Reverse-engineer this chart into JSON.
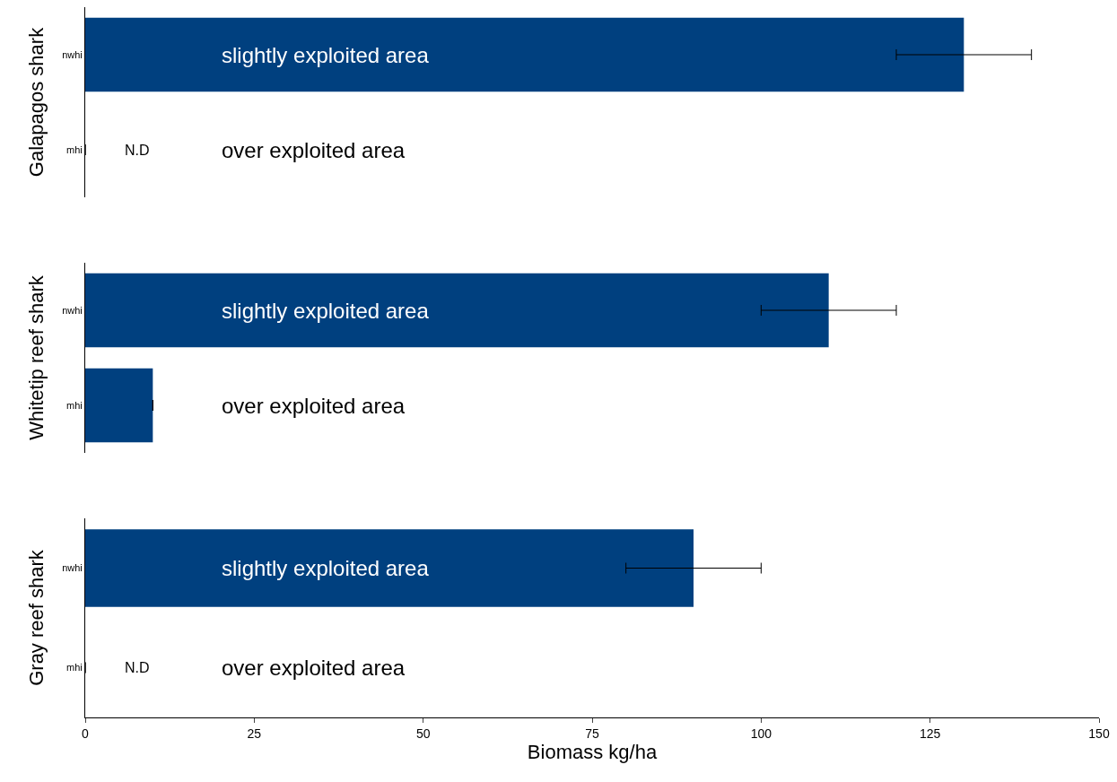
{
  "chart_data": [
    {
      "type": "bar",
      "orientation": "horizontal",
      "ylabel": "Galapagos shark",
      "categories": [
        "nwhi",
        "mhi"
      ],
      "color": "#00407f",
      "values": [
        130,
        0
      ],
      "errors": [
        [
          120,
          140
        ],
        null
      ],
      "xlim": [
        0,
        150
      ],
      "tick_labels": "y",
      "annotations": [
        "slightly exploited area",
        "over exploited area",
        "N.D"
      ]
    },
    {
      "type": "bar",
      "orientation": "horizontal",
      "ylabel": "Whitetip reef shark",
      "categories": [
        "nwhi",
        "mhi"
      ],
      "color": "#00407f",
      "values": [
        110,
        10
      ],
      "errors": [
        [
          100,
          120
        ],
        null
      ],
      "xlim": [
        0,
        150
      ],
      "tick_labels": "y",
      "annotations": [
        "slightly exploited area",
        "over exploited area"
      ]
    },
    {
      "type": "bar",
      "orientation": "horizontal",
      "ylabel": "Gray reef shark",
      "xlabel": "Biomass kg/ha",
      "categories": [
        "nwhi",
        "mhi"
      ],
      "color": "#00407f",
      "values": [
        90,
        0
      ],
      "errors": [
        [
          80,
          100
        ],
        null
      ],
      "xlim": [
        0,
        150
      ],
      "xticks": [
        0,
        25,
        50,
        75,
        100,
        125,
        150
      ],
      "annotations": [
        "slightly exploited area",
        "over exploited area",
        "N.D"
      ]
    }
  ]
}
